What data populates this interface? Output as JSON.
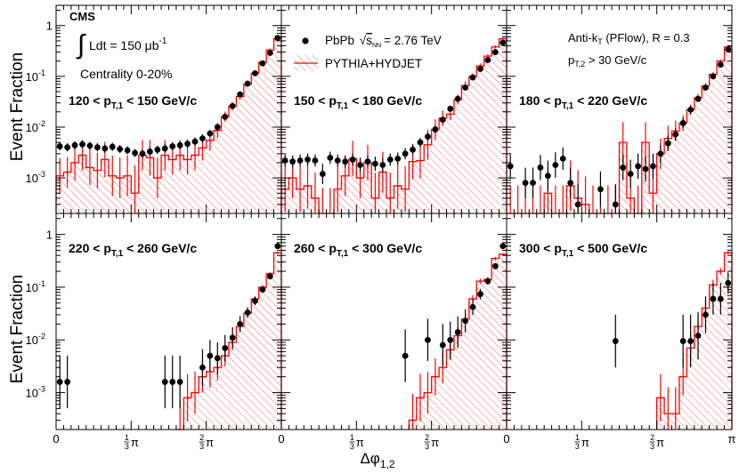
{
  "chart_data": {
    "type": "histogram",
    "experiment": "CMS",
    "luminosity_label": "Ldt = 150 μb",
    "luminosity_exponent": "-1",
    "centrality": "Centrality 0-20%",
    "legend": {
      "data": {
        "name": "PbPb",
        "energy": "= 2.76 TeV",
        "sqrt": "√",
        "s": "s",
        "sub": "NN"
      },
      "mc": {
        "name": "PYTHIA+HYDJET"
      }
    },
    "algo": {
      "text": "Anti-k",
      "sub": "T",
      "rest": " (PFlow), R = 0.3"
    },
    "pt2_cut": {
      "text": "p",
      "sub": "T,2",
      "rest": " > 30 GeV/c"
    },
    "ylabel": "Event Fraction",
    "xlabel": {
      "main": "Δφ",
      "sub": "1,2"
    },
    "xlim_pi": [
      0,
      1
    ],
    "ylim": [
      0.0002,
      2.5
    ],
    "yscale": "log",
    "yticks": [
      {
        "value": 0.001,
        "base": "10",
        "exp": "-3"
      },
      {
        "value": 0.01,
        "base": "10",
        "exp": "-2"
      },
      {
        "value": 0.1,
        "base": "10",
        "exp": "-1"
      },
      {
        "value": 1,
        "base": "1",
        "exp": ""
      }
    ],
    "xticks": [
      {
        "value": 0,
        "label": "0"
      },
      {
        "value": 0.3333,
        "num": "1",
        "den": "3",
        "pi": "π"
      },
      {
        "value": 0.6667,
        "num": "2",
        "den": "3",
        "pi": "π"
      },
      {
        "value": 1,
        "label": "π"
      }
    ],
    "nbins": 30,
    "panels": [
      {
        "label": {
          "lo": "120 < p",
          "sub": "T,1",
          "hi": " < 150 GeV/c"
        },
        "pbpb": [
          0.0042,
          0.004,
          0.0044,
          0.0046,
          0.0043,
          0.004,
          0.0038,
          0.0041,
          0.0037,
          0.0035,
          0.0031,
          0.003,
          0.0033,
          0.0036,
          0.0038,
          0.0042,
          0.0044,
          0.0047,
          0.0052,
          0.006,
          0.0075,
          0.01,
          0.016,
          0.026,
          0.044,
          0.072,
          0.115,
          0.18,
          0.29,
          0.57
        ],
        "mc": [
          0.0011,
          0.0013,
          0.002,
          0.0028,
          0.0016,
          0.0014,
          0.0023,
          0.0011,
          0.001,
          0.0011,
          0.0005,
          0.0028,
          0.0025,
          0.001,
          0.0028,
          0.0023,
          0.0028,
          0.0023,
          0.0028,
          0.0039,
          0.0055,
          0.0086,
          0.016,
          0.026,
          0.04,
          0.07,
          0.115,
          0.19,
          0.33,
          0.55
        ],
        "mc_err": [
          0.35,
          0.3,
          0.35,
          0.3,
          0.35,
          0.35,
          0.35,
          0.4,
          0.4,
          0.4,
          0.55,
          0.3,
          0.35,
          0.4,
          0.3,
          0.3,
          0.3,
          0.3,
          0.3,
          0.25,
          0.2,
          0.15,
          0.1,
          0.08,
          0.06,
          0.05,
          0.04,
          0.03,
          0.03,
          0.02
        ],
        "pbpb_err": [
          0.08,
          0.08,
          0.08,
          0.08,
          0.08,
          0.08,
          0.08,
          0.08,
          0.08,
          0.08,
          0.08,
          0.08,
          0.08,
          0.08,
          0.08,
          0.08,
          0.08,
          0.08,
          0.08,
          0.08,
          0.07,
          0.06,
          0.05,
          0.05,
          0.04,
          0.04,
          0.03,
          0.03,
          0.03,
          0.02
        ]
      },
      {
        "label": {
          "lo": "150 < p",
          "sub": "T,1",
          "hi": " < 180 GeV/c"
        },
        "pbpb": [
          0.0022,
          0.0021,
          0.0022,
          0.0023,
          0.0022,
          0.0012,
          0.0025,
          0.0022,
          0.0021,
          0.0023,
          0.0018,
          0.0021,
          0.0019,
          0.0018,
          0.0023,
          0.0024,
          0.003,
          0.0036,
          0.005,
          0.0065,
          0.009,
          0.014,
          0.023,
          0.036,
          0.06,
          0.095,
          0.14,
          0.21,
          0.3,
          0.46
        ],
        "mc": [
          0.0006,
          0.001,
          0.0006,
          0.0007,
          0.0004,
          0.0002,
          0.0002,
          0.0006,
          0.0011,
          0.0024,
          0.001,
          0.002,
          0.0004,
          0.0013,
          0.0004,
          0.0007,
          0.0006,
          0.0021,
          0.0022,
          0.0045,
          0.009,
          0.015,
          0.018,
          0.035,
          0.066,
          0.1,
          0.16,
          0.25,
          0.38,
          0.55
        ],
        "mc_err": [
          0.45,
          0.4,
          0.45,
          0.45,
          0.5,
          0.5,
          0.5,
          0.45,
          0.4,
          0.35,
          0.4,
          0.35,
          0.5,
          0.4,
          0.5,
          0.45,
          0.45,
          0.35,
          0.35,
          0.3,
          0.2,
          0.15,
          0.12,
          0.1,
          0.08,
          0.06,
          0.05,
          0.04,
          0.03,
          0.02
        ],
        "pbpb_err": [
          0.12,
          0.12,
          0.12,
          0.12,
          0.12,
          0.2,
          0.12,
          0.12,
          0.12,
          0.12,
          0.14,
          0.12,
          0.14,
          0.14,
          0.12,
          0.12,
          0.11,
          0.1,
          0.09,
          0.08,
          0.07,
          0.06,
          0.05,
          0.05,
          0.04,
          0.04,
          0.03,
          0.03,
          0.03,
          0.02
        ]
      },
      {
        "label": {
          "lo": "180 < p",
          "sub": "T,1",
          "hi": " < 220 GeV/c"
        },
        "pbpb": [
          0.0017,
          null,
          0.0008,
          0.0008,
          0.0016,
          0.0011,
          0.0018,
          0.0024,
          0.0008,
          0.0003,
          null,
          null,
          0.0006,
          null,
          0.0003,
          0.0016,
          0.0012,
          0.0017,
          0.0015,
          0.0017,
          0.003,
          0.0048,
          0.0072,
          0.012,
          0.022,
          0.036,
          0.06,
          0.1,
          0.17,
          0.34
        ],
        "mc": [
          0.0002,
          0.0002,
          0.0002,
          0.0002,
          0.0002,
          0.0005,
          0.0002,
          0.0002,
          0.0007,
          0.0004,
          0.0003,
          0.0002,
          0.0002,
          0.0002,
          0.0002,
          0.005,
          0.0004,
          0.0002,
          0.005,
          0.0005,
          0.003,
          0.006,
          0.0084,
          0.012,
          0.022,
          0.038,
          0.065,
          0.11,
          0.2,
          0.38
        ],
        "mc_err": [
          0.55,
          0.55,
          0.55,
          0.55,
          0.55,
          0.5,
          0.55,
          0.55,
          0.5,
          0.55,
          0.55,
          0.55,
          0.55,
          0.55,
          0.55,
          0.4,
          0.55,
          0.55,
          0.4,
          0.55,
          0.3,
          0.25,
          0.2,
          0.15,
          0.1,
          0.07,
          0.05,
          0.04,
          0.03,
          0.02
        ],
        "pbpb_err": [
          0.25,
          0,
          0.3,
          0.3,
          0.25,
          0.3,
          0.25,
          0.22,
          0.3,
          0.4,
          0,
          0,
          0.35,
          0,
          0.4,
          0.25,
          0.28,
          0.25,
          0.25,
          0.25,
          0.18,
          0.15,
          0.12,
          0.1,
          0.08,
          0.06,
          0.05,
          0.04,
          0.03,
          0.02
        ]
      },
      {
        "label": {
          "lo": "220 < p",
          "sub": "T,1",
          "hi": " < 260 GeV/c"
        },
        "pbpb": [
          0.0016,
          0.0016,
          null,
          null,
          null,
          null,
          null,
          null,
          null,
          null,
          null,
          null,
          null,
          null,
          0.0016,
          0.0016,
          0.0016,
          null,
          null,
          0.003,
          0.005,
          0.0045,
          0.007,
          0.011,
          0.02,
          0.033,
          0.055,
          0.09,
          0.16,
          0.6
        ],
        "mc": [
          null,
          null,
          null,
          null,
          null,
          null,
          null,
          null,
          null,
          null,
          null,
          null,
          null,
          null,
          null,
          null,
          0.0002,
          0.0008,
          0.001,
          0.002,
          0.0025,
          0.003,
          0.005,
          0.009,
          0.018,
          0.032,
          0.06,
          0.1,
          0.18,
          0.45
        ],
        "mc_err": [
          0,
          0,
          0,
          0,
          0,
          0,
          0,
          0,
          0,
          0,
          0,
          0,
          0,
          0,
          0,
          0,
          0.55,
          0.45,
          0.4,
          0.3,
          0.3,
          0.25,
          0.2,
          0.15,
          0.1,
          0.07,
          0.05,
          0.04,
          0.03,
          0.02
        ],
        "pbpb_err": [
          0.5,
          0.5,
          0,
          0,
          0,
          0,
          0,
          0,
          0,
          0,
          0,
          0,
          0,
          0,
          0.5,
          0.5,
          0.5,
          0,
          0,
          0.35,
          0.3,
          0.3,
          0.25,
          0.2,
          0.15,
          0.1,
          0.08,
          0.06,
          0.05,
          0.03
        ]
      },
      {
        "label": {
          "lo": "260 < p",
          "sub": "T,1",
          "hi": " < 300 GeV/c"
        },
        "pbpb": [
          null,
          null,
          null,
          null,
          null,
          null,
          null,
          null,
          null,
          null,
          null,
          null,
          null,
          null,
          null,
          null,
          0.005,
          null,
          null,
          0.01,
          null,
          0.008,
          0.01,
          0.014,
          0.023,
          0.042,
          0.074,
          0.13,
          0.25,
          0.6
        ],
        "mc": [
          null,
          null,
          null,
          null,
          null,
          null,
          null,
          null,
          null,
          null,
          null,
          null,
          null,
          null,
          null,
          null,
          null,
          0.0003,
          0.0008,
          0.001,
          0.002,
          0.003,
          0.0065,
          0.012,
          0.025,
          0.06,
          0.13,
          0.14,
          0.35,
          0.42
        ],
        "mc_err": [
          0,
          0,
          0,
          0,
          0,
          0,
          0,
          0,
          0,
          0,
          0,
          0,
          0,
          0,
          0,
          0,
          0,
          0.5,
          0.45,
          0.4,
          0.35,
          0.3,
          0.2,
          0.15,
          0.1,
          0.07,
          0.05,
          0.04,
          0.03,
          0.02
        ],
        "pbpb_err": [
          0,
          0,
          0,
          0,
          0,
          0,
          0,
          0,
          0,
          0,
          0,
          0,
          0,
          0,
          0,
          0,
          0.5,
          0,
          0,
          0.4,
          0,
          0.4,
          0.35,
          0.3,
          0.22,
          0.15,
          0.1,
          0.07,
          0.05,
          0.03
        ]
      },
      {
        "label": {
          "lo": "300 < p",
          "sub": "T,1",
          "hi": " < 500 GeV/c"
        },
        "pbpb": [
          null,
          null,
          null,
          null,
          null,
          null,
          null,
          null,
          null,
          null,
          null,
          null,
          null,
          null,
          0.0095,
          null,
          null,
          null,
          null,
          null,
          null,
          null,
          null,
          0.0095,
          0.0095,
          0.012,
          0.03,
          0.06,
          0.06,
          0.12
        ],
        "mc": [
          null,
          null,
          null,
          null,
          null,
          null,
          null,
          null,
          null,
          null,
          null,
          null,
          null,
          null,
          null,
          null,
          null,
          null,
          null,
          null,
          0.0008,
          0.0004,
          0.0004,
          0.002,
          0.007,
          0.018,
          0.04,
          0.11,
          0.2,
          0.45
        ],
        "mc_err": [
          0,
          0,
          0,
          0,
          0,
          0,
          0,
          0,
          0,
          0,
          0,
          0,
          0,
          0,
          0,
          0,
          0,
          0,
          0,
          0,
          0.45,
          0.5,
          0.5,
          0.35,
          0.25,
          0.2,
          0.15,
          0.1,
          0.06,
          0.03
        ],
        "pbpb_err": [
          0,
          0,
          0,
          0,
          0,
          0,
          0,
          0,
          0,
          0,
          0,
          0,
          0,
          0,
          0.5,
          0,
          0,
          0,
          0,
          0,
          0,
          0,
          0,
          0.5,
          0.5,
          0.45,
          0.35,
          0.3,
          0.3,
          0.2
        ]
      }
    ]
  }
}
